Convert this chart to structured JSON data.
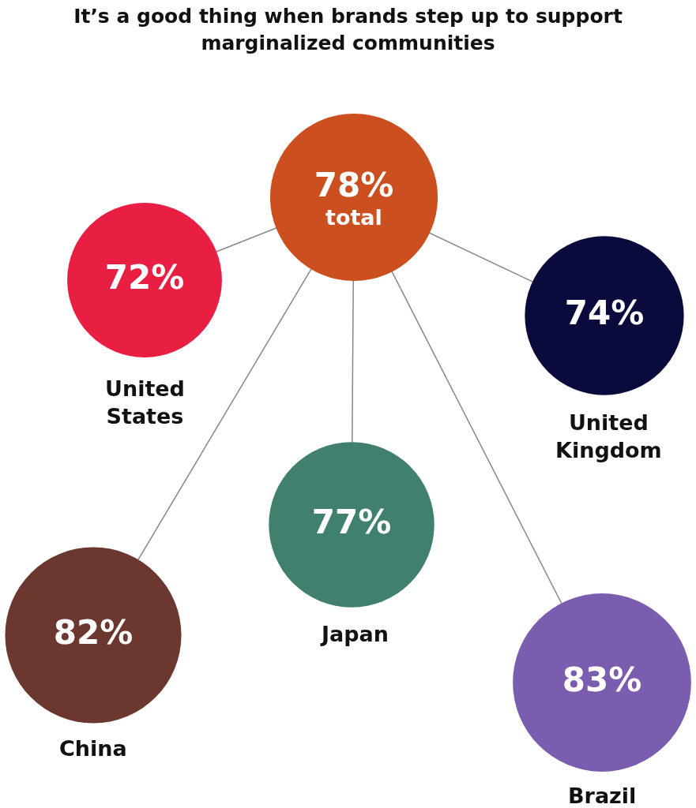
{
  "chart_data": {
    "type": "other",
    "title": "It’s a good thing when brands step up to support marginalized communities",
    "categories": [
      "total",
      "United States",
      "United Kingdom",
      "China",
      "Japan",
      "Brazil"
    ],
    "values": [
      78,
      72,
      74,
      82,
      77,
      83
    ],
    "value_labels": [
      "78%",
      "72%",
      "74%",
      "82%",
      "77%",
      "83%"
    ],
    "colors": [
      "#cc4f1f",
      "#e81e42",
      "#0a0a3c",
      "#6b372f",
      "#41806f",
      "#7b5db0"
    ]
  }
}
